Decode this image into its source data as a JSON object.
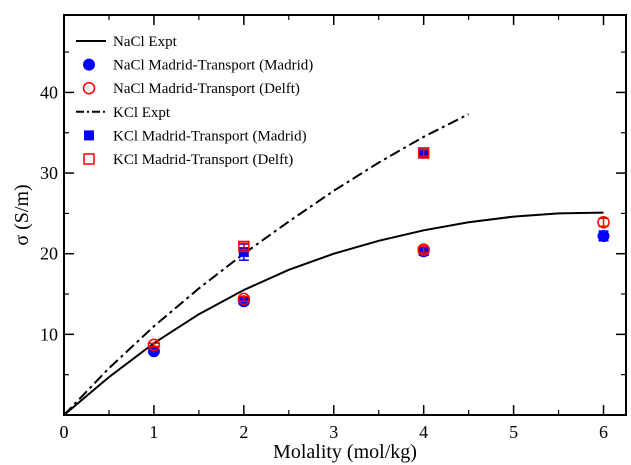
{
  "chart_data": {
    "type": "line",
    "xlabel": "Molality (mol/kg)",
    "ylabel": "σ (S/m)",
    "xlim": [
      0,
      6.25
    ],
    "ylim": [
      0,
      49.6
    ],
    "xticks": [
      0,
      1,
      2,
      3,
      4,
      5,
      6
    ],
    "yticks": [
      10,
      20,
      30,
      40
    ],
    "grid": false,
    "legend_position": "top-left",
    "series": [
      {
        "name": "NaCl Expt",
        "kind": "line",
        "style": "solid",
        "color": "#000000",
        "x": [
          0,
          0.5,
          1,
          1.5,
          2,
          2.5,
          3,
          3.5,
          4,
          4.5,
          5,
          5.5,
          6
        ],
        "y": [
          0,
          4.7,
          8.9,
          12.5,
          15.5,
          18.0,
          20.0,
          21.6,
          22.9,
          23.9,
          24.6,
          25.0,
          25.1
        ]
      },
      {
        "name": "NaCl Madrid-Transport (Madrid)",
        "kind": "scatter",
        "marker": "circle-filled",
        "color": "#0000ff",
        "x": [
          1,
          2,
          4,
          6
        ],
        "y": [
          7.9,
          14.1,
          20.3,
          22.2
        ],
        "yerr": [
          0.3,
          0.4,
          0.5,
          0.6
        ]
      },
      {
        "name": "NaCl Madrid-Transport (Delft)",
        "kind": "scatter",
        "marker": "circle-open",
        "color": "#ff0000",
        "x": [
          1,
          2,
          4,
          6
        ],
        "y": [
          8.7,
          14.4,
          20.5,
          23.9
        ],
        "yerr": [
          0.2,
          0.3,
          0.4,
          0.5
        ]
      },
      {
        "name": "KCl Expt",
        "kind": "line",
        "style": "dashdot",
        "color": "#000000",
        "x": [
          0,
          0.5,
          1,
          1.5,
          2,
          2.5,
          3,
          3.5,
          4,
          4.5
        ],
        "y": [
          0,
          5.8,
          11.0,
          15.7,
          20.0,
          24.0,
          27.8,
          31.3,
          34.5,
          37.3
        ]
      },
      {
        "name": "KCl Madrid-Transport (Madrid)",
        "kind": "scatter",
        "marker": "square-filled",
        "color": "#0000ff",
        "x": [
          2,
          4
        ],
        "y": [
          20.2,
          32.4
        ],
        "yerr": [
          1.0,
          0.5
        ]
      },
      {
        "name": "KCl Madrid-Transport (Delft)",
        "kind": "scatter",
        "marker": "square-open",
        "color": "#ff0000",
        "x": [
          2,
          4
        ],
        "y": [
          20.9,
          32.5
        ],
        "yerr": [
          0.4,
          0.4
        ]
      }
    ]
  }
}
